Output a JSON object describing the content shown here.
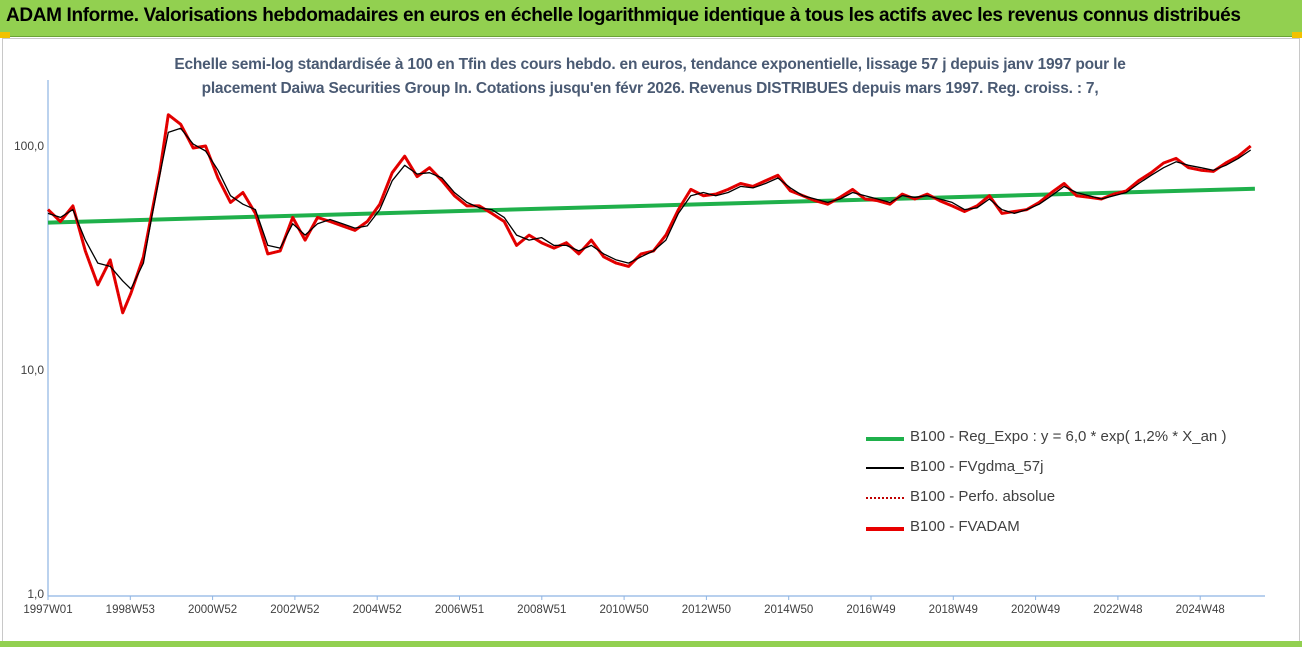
{
  "banner": {
    "title": "ADAM Informe. Valorisations hebdomadaires en euros en échelle logarithmique identique à tous les actifs avec les revenus connus distribués"
  },
  "subtitle": {
    "line1": "Echelle semi-log standardisée à 100 en Tfin des cours hebdo. en euros, tendance exponentielle, lissage 57 j depuis janv 1997 pour le",
    "line2": "placement Daiwa Securities Group In. Cotations jusqu'en févr 2026. Revenus DISTRIBUES depuis mars 1997. Reg. croiss. : 7,"
  },
  "colors": {
    "banner": "#92d050",
    "accent_corner": "#f2c200",
    "trend": "#1fb04b",
    "fvadam": "#e80000",
    "smoothed": "#000000",
    "perfo": "#c00000",
    "axis": "#8eb4e3"
  },
  "legend": [
    {
      "label": "B100 - Reg_Expo : y = 6,0 * exp( 1,2% *  X_an )",
      "style": "trend"
    },
    {
      "label": "B100 - FVgdma_57j",
      "style": "smoothed"
    },
    {
      "label": "B100 - Perfo. absolue",
      "style": "perfo"
    },
    {
      "label": "B100 - FVADAM",
      "style": "fvadam"
    }
  ],
  "chart_data": {
    "type": "line",
    "y_scale": "log",
    "ylim": [
      1,
      100
    ],
    "y_ticks": [
      "1,0",
      "10,0",
      "100,0"
    ],
    "x_range": [
      1997.0,
      2026.2
    ],
    "x_tick_labels": [
      "1997W01",
      "1998W53",
      "2000W52",
      "2002W52",
      "2004W52",
      "2006W51",
      "2008W51",
      "2010W50",
      "2012W50",
      "2014W50",
      "2016W49",
      "2018W49",
      "2020W49",
      "2022W48",
      "2024W48"
    ],
    "series": [
      {
        "name": "B100 - Reg_Expo : y = 6,0 * exp( 1,2% *  X_an )",
        "x": [
          1997.0,
          2026.1
        ],
        "y": [
          45.5,
          64.5
        ]
      },
      {
        "name": "B100 - FVgdma_57j",
        "x": [
          1997.0,
          1997.3,
          1997.6,
          1997.9,
          1998.2,
          1998.5,
          1998.8,
          1999.0,
          1999.3,
          1999.5,
          1999.7,
          1999.9,
          2000.2,
          2000.5,
          2000.8,
          2001.1,
          2001.4,
          2001.7,
          2002.0,
          2002.3,
          2002.6,
          2002.9,
          2003.2,
          2003.5,
          2003.8,
          2004.1,
          2004.4,
          2004.7,
          2005.0,
          2005.3,
          2005.6,
          2005.9,
          2006.2,
          2006.5,
          2006.8,
          2007.1,
          2007.4,
          2007.7,
          2008.0,
          2008.3,
          2008.6,
          2008.9,
          2009.2,
          2009.5,
          2009.8,
          2010.1,
          2010.4,
          2010.7,
          2011.0,
          2011.3,
          2011.6,
          2011.9,
          2012.2,
          2012.5,
          2012.8,
          2013.1,
          2013.4,
          2013.7,
          2014.0,
          2014.3,
          2014.6,
          2014.9,
          2015.2,
          2015.5,
          2015.8,
          2016.1,
          2016.4,
          2016.7,
          2017.0,
          2017.3,
          2017.6,
          2017.9,
          2018.2,
          2018.5,
          2018.8,
          2019.1,
          2019.4,
          2019.7,
          2020.0,
          2020.3,
          2020.6,
          2020.9,
          2021.2,
          2021.5,
          2021.8,
          2022.1,
          2022.4,
          2022.7,
          2023.0,
          2023.3,
          2023.6,
          2023.9,
          2024.2,
          2024.5,
          2024.8,
          2025.1,
          2025.4,
          2025.7,
          2026.0
        ],
        "y": [
          50,
          48,
          52,
          38,
          30,
          29,
          25,
          23,
          30,
          48,
          75,
          115,
          120,
          102,
          95,
          78,
          60,
          55,
          52,
          36,
          35,
          45,
          40,
          45,
          47,
          45,
          43,
          44,
          52,
          70,
          82,
          75,
          76,
          72,
          62,
          56,
          53,
          52,
          48,
          40,
          38,
          39,
          36,
          36,
          34,
          36,
          33,
          31,
          30,
          32,
          34,
          38,
          50,
          60,
          62,
          60,
          62,
          66,
          65,
          68,
          72,
          65,
          60,
          58,
          56,
          58,
          62,
          60,
          58,
          56,
          60,
          59,
          60,
          58,
          56,
          52,
          53,
          58,
          52,
          50,
          52,
          55,
          60,
          66,
          62,
          60,
          58,
          60,
          62,
          68,
          74,
          80,
          85,
          82,
          80,
          78,
          82,
          88,
          96
        ]
      },
      {
        "name": "B100 - FVADAM",
        "x": [
          1997.0,
          1997.3,
          1997.6,
          1997.9,
          1998.2,
          1998.5,
          1998.8,
          1999.0,
          1999.3,
          1999.5,
          1999.7,
          1999.9,
          2000.2,
          2000.5,
          2000.8,
          2001.1,
          2001.4,
          2001.7,
          2002.0,
          2002.3,
          2002.6,
          2002.9,
          2003.2,
          2003.5,
          2003.8,
          2004.1,
          2004.4,
          2004.7,
          2005.0,
          2005.3,
          2005.6,
          2005.9,
          2006.2,
          2006.5,
          2006.8,
          2007.1,
          2007.4,
          2007.7,
          2008.0,
          2008.3,
          2008.6,
          2008.9,
          2009.2,
          2009.5,
          2009.8,
          2010.1,
          2010.4,
          2010.7,
          2011.0,
          2011.3,
          2011.6,
          2011.9,
          2012.2,
          2012.5,
          2012.8,
          2013.1,
          2013.4,
          2013.7,
          2014.0,
          2014.3,
          2014.6,
          2014.9,
          2015.2,
          2015.5,
          2015.8,
          2016.1,
          2016.4,
          2016.7,
          2017.0,
          2017.3,
          2017.6,
          2017.9,
          2018.2,
          2018.5,
          2018.8,
          2019.1,
          2019.4,
          2019.7,
          2020.0,
          2020.3,
          2020.6,
          2020.9,
          2021.2,
          2021.5,
          2021.8,
          2022.1,
          2022.4,
          2022.7,
          2023.0,
          2023.3,
          2023.6,
          2023.9,
          2024.2,
          2024.5,
          2024.8,
          2025.1,
          2025.4,
          2025.7,
          2026.0
        ],
        "y": [
          52,
          46,
          54,
          34,
          24,
          31,
          18,
          22,
          32,
          50,
          78,
          138,
          125,
          98,
          100,
          72,
          56,
          62,
          50,
          33,
          34,
          48,
          38,
          48,
          46,
          44,
          42,
          46,
          55,
          76,
          90,
          73,
          80,
          70,
          60,
          54,
          54,
          50,
          46,
          36,
          40,
          37,
          35,
          37,
          33,
          38,
          32,
          30,
          29,
          33,
          34,
          40,
          52,
          64,
          60,
          61,
          64,
          68,
          66,
          70,
          74,
          63,
          60,
          57,
          55,
          59,
          64,
          58,
          57,
          55,
          61,
          58,
          61,
          57,
          54,
          51,
          54,
          60,
          50,
          51,
          52,
          56,
          62,
          68,
          60,
          59,
          58,
          61,
          63,
          70,
          76,
          84,
          88,
          80,
          78,
          77,
          84,
          90,
          100
        ]
      }
    ]
  }
}
